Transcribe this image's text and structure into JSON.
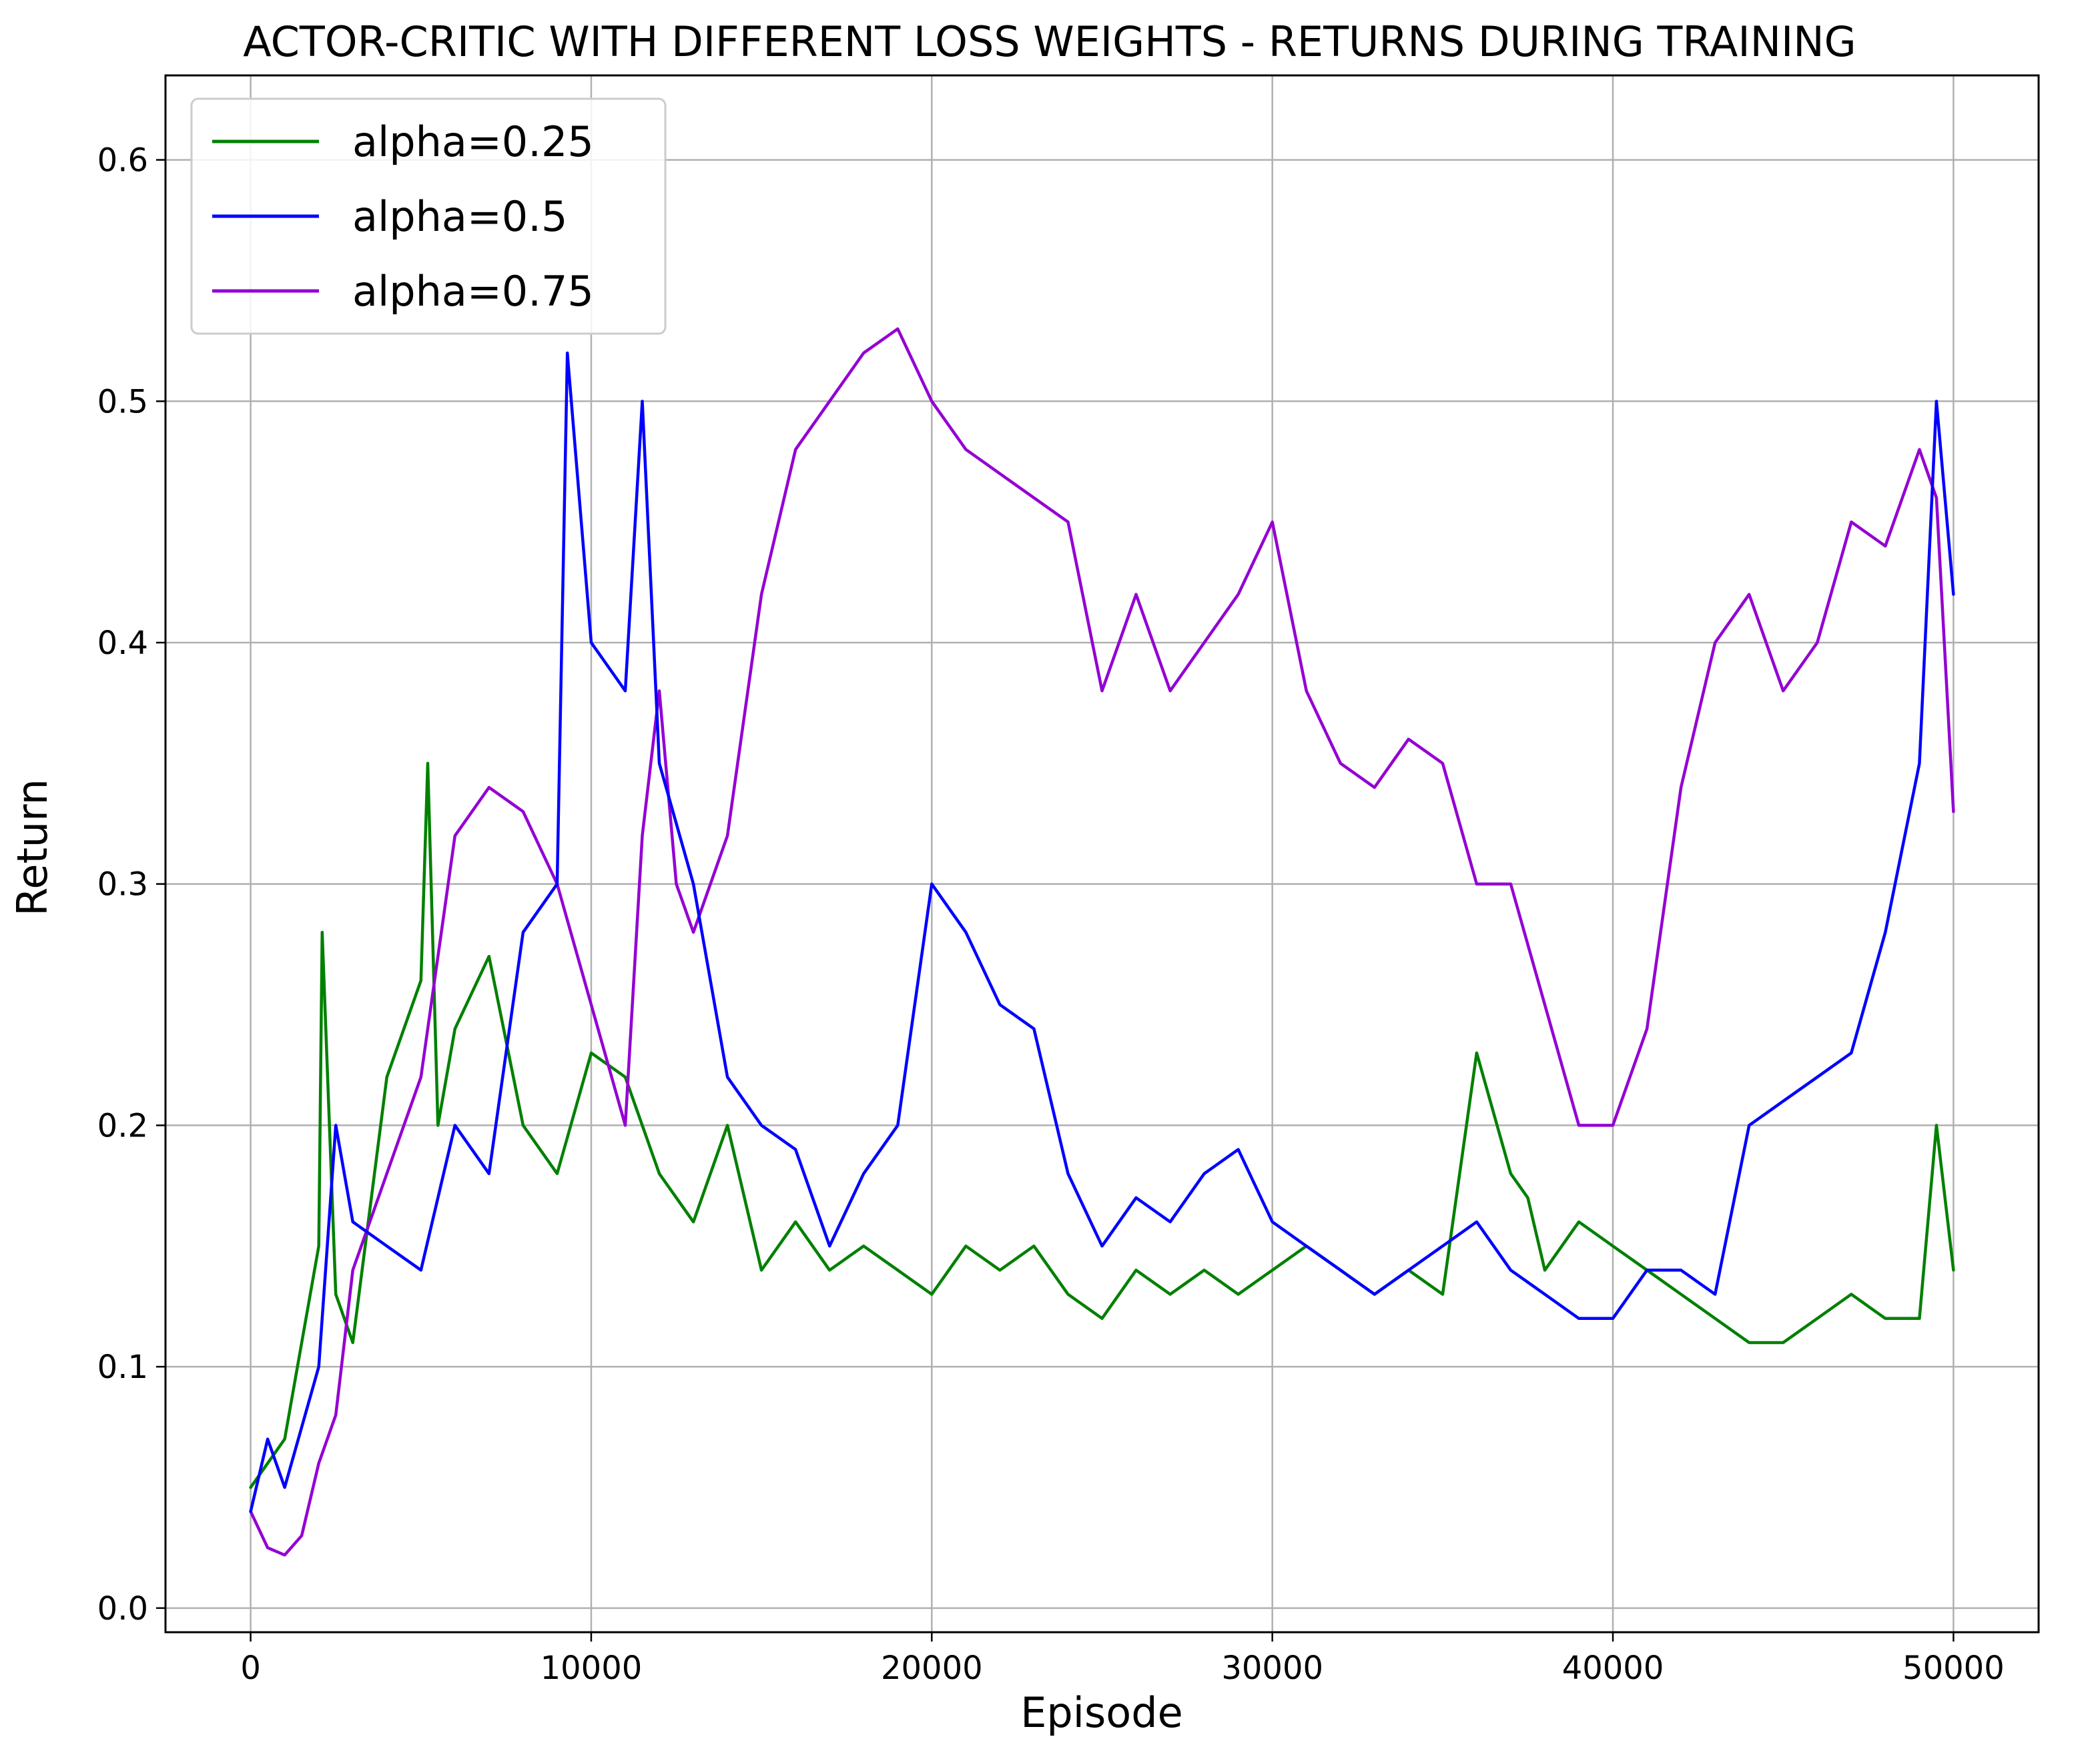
{
  "chart_data": {
    "type": "line",
    "title": "ACTOR-CRITIC WITH DIFFERENT LOSS WEIGHTS - RETURNS DURING TRAINING",
    "xlabel": "Episode",
    "ylabel": "Return",
    "xlim": [
      -2500,
      52500
    ],
    "ylim": [
      -0.01,
      0.635
    ],
    "xticks": [
      0,
      10000,
      20000,
      30000,
      40000,
      50000
    ],
    "xtick_labels": [
      "0",
      "10000",
      "20000",
      "30000",
      "40000",
      "50000"
    ],
    "yticks": [
      0.0,
      0.1,
      0.2,
      0.3,
      0.4,
      0.5,
      0.6
    ],
    "ytick_labels": [
      "0.0",
      "0.1",
      "0.2",
      "0.3",
      "0.4",
      "0.5",
      "0.6"
    ],
    "grid": true,
    "legend_position": "top-left",
    "series": [
      {
        "name": "alpha=0.25",
        "color": "#008000",
        "x": [
          0,
          1000,
          2000,
          2100,
          2500,
          3000,
          4000,
          5000,
          5200,
          5500,
          6000,
          7000,
          8000,
          9000,
          10000,
          11000,
          12000,
          13000,
          14000,
          15000,
          16000,
          17000,
          18000,
          19000,
          20000,
          21000,
          22000,
          23000,
          24000,
          25000,
          26000,
          27000,
          28000,
          29000,
          30000,
          31000,
          32000,
          33000,
          34000,
          35000,
          36000,
          37000,
          37500,
          38000,
          39000,
          40000,
          41000,
          42000,
          43000,
          44000,
          45000,
          46000,
          47000,
          48000,
          49000,
          49500,
          50000
        ],
        "y": [
          0.05,
          0.07,
          0.15,
          0.28,
          0.13,
          0.11,
          0.22,
          0.26,
          0.35,
          0.2,
          0.24,
          0.27,
          0.2,
          0.18,
          0.23,
          0.22,
          0.18,
          0.16,
          0.2,
          0.14,
          0.16,
          0.14,
          0.15,
          0.14,
          0.13,
          0.15,
          0.14,
          0.15,
          0.13,
          0.12,
          0.14,
          0.13,
          0.14,
          0.13,
          0.14,
          0.15,
          0.14,
          0.13,
          0.14,
          0.13,
          0.23,
          0.18,
          0.17,
          0.14,
          0.16,
          0.15,
          0.14,
          0.13,
          0.12,
          0.11,
          0.11,
          0.12,
          0.13,
          0.12,
          0.12,
          0.2,
          0.14
        ]
      },
      {
        "name": "alpha=0.5",
        "color": "#0000ff",
        "x": [
          0,
          500,
          1000,
          2000,
          2500,
          3000,
          4000,
          5000,
          6000,
          7000,
          8000,
          9000,
          9300,
          10000,
          11000,
          11500,
          12000,
          13000,
          14000,
          15000,
          16000,
          17000,
          18000,
          19000,
          20000,
          21000,
          22000,
          23000,
          24000,
          25000,
          26000,
          27000,
          28000,
          29000,
          30000,
          31000,
          32000,
          33000,
          34000,
          35000,
          36000,
          37000,
          38000,
          39000,
          40000,
          41000,
          42000,
          43000,
          44000,
          45000,
          46000,
          47000,
          48000,
          49000,
          49500,
          50000
        ],
        "y": [
          0.04,
          0.07,
          0.05,
          0.1,
          0.2,
          0.16,
          0.15,
          0.14,
          0.2,
          0.18,
          0.28,
          0.3,
          0.52,
          0.4,
          0.38,
          0.5,
          0.35,
          0.3,
          0.22,
          0.2,
          0.19,
          0.15,
          0.18,
          0.2,
          0.3,
          0.28,
          0.25,
          0.24,
          0.18,
          0.15,
          0.17,
          0.16,
          0.18,
          0.19,
          0.16,
          0.15,
          0.14,
          0.13,
          0.14,
          0.15,
          0.16,
          0.14,
          0.13,
          0.12,
          0.12,
          0.14,
          0.14,
          0.13,
          0.2,
          0.21,
          0.22,
          0.23,
          0.28,
          0.35,
          0.5,
          0.42
        ]
      },
      {
        "name": "alpha=0.75",
        "color": "#9400d3",
        "x": [
          0,
          500,
          1000,
          1500,
          2000,
          2500,
          3000,
          4000,
          5000,
          6000,
          7000,
          8000,
          9000,
          10000,
          11000,
          11500,
          12000,
          12500,
          13000,
          14000,
          15000,
          16000,
          17000,
          18000,
          19000,
          20000,
          21000,
          22000,
          23000,
          24000,
          25000,
          26000,
          27000,
          28000,
          29000,
          30000,
          31000,
          32000,
          33000,
          34000,
          35000,
          36000,
          37000,
          38000,
          39000,
          40000,
          41000,
          42000,
          43000,
          44000,
          45000,
          46000,
          47000,
          48000,
          49000,
          49500,
          50000
        ],
        "y": [
          0.04,
          0.025,
          0.022,
          0.03,
          0.06,
          0.08,
          0.14,
          0.18,
          0.22,
          0.32,
          0.34,
          0.33,
          0.3,
          0.25,
          0.2,
          0.32,
          0.38,
          0.3,
          0.28,
          0.32,
          0.42,
          0.48,
          0.5,
          0.52,
          0.53,
          0.5,
          0.48,
          0.47,
          0.46,
          0.45,
          0.38,
          0.42,
          0.38,
          0.4,
          0.42,
          0.45,
          0.38,
          0.35,
          0.34,
          0.36,
          0.35,
          0.3,
          0.3,
          0.25,
          0.2,
          0.2,
          0.24,
          0.34,
          0.4,
          0.42,
          0.38,
          0.4,
          0.45,
          0.44,
          0.48,
          0.46,
          0.33
        ]
      }
    ]
  }
}
